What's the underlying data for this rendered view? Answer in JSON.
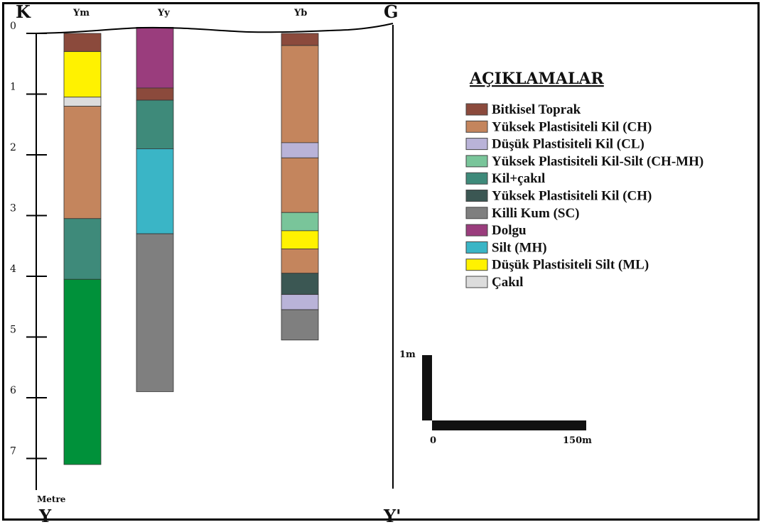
{
  "section": {
    "left_label": "K",
    "right_label": "G",
    "bottom_left_label": "Y",
    "bottom_right_label": "Y'",
    "depth_unit_label": "Metre",
    "depth_ticks": [
      "0",
      "1",
      "2",
      "3",
      "4",
      "5",
      "6",
      "7"
    ]
  },
  "boreholes": [
    {
      "name": "Ym",
      "layers": [
        {
          "unit": "Bitkisel Toprak",
          "top": 0.0,
          "bottom": 0.3
        },
        {
          "unit": "Düşük Plastisiteli Silt (ML)",
          "top": 0.3,
          "bottom": 1.05
        },
        {
          "unit": "Çakıl",
          "top": 1.05,
          "bottom": 1.2
        },
        {
          "unit": "Yüksek Plastisiteli Kil (CH)",
          "top": 1.2,
          "bottom": 3.05
        },
        {
          "unit": "Kil+çakıl",
          "top": 3.05,
          "bottom": 4.05
        },
        {
          "unit": "Green",
          "top": 4.05,
          "bottom": 7.1
        }
      ]
    },
    {
      "name": "Yy",
      "layers": [
        {
          "unit": "Dolgu",
          "top": -0.1,
          "bottom": 0.9
        },
        {
          "unit": "Bitkisel Toprak",
          "top": 0.9,
          "bottom": 1.1
        },
        {
          "unit": "Kil+çakıl",
          "top": 1.1,
          "bottom": 1.9
        },
        {
          "unit": "Silt (MH)",
          "top": 1.9,
          "bottom": 3.3
        },
        {
          "unit": "Killi Kum (SC)",
          "top": 3.3,
          "bottom": 5.9
        }
      ]
    },
    {
      "name": "Yb",
      "layers": [
        {
          "unit": "Bitkisel Toprak",
          "top": 0.0,
          "bottom": 0.2
        },
        {
          "unit": "Yüksek Plastisiteli Kil (CH)",
          "top": 0.2,
          "bottom": 1.8
        },
        {
          "unit": "Düşük Plastisiteli Kil (CL)",
          "top": 1.8,
          "bottom": 2.05
        },
        {
          "unit": "Yüksek Plastisiteli Kil (CH)",
          "top": 2.05,
          "bottom": 2.95
        },
        {
          "unit": "Yüksek Plastisiteli Kil-Silt (CH-MH)",
          "top": 2.95,
          "bottom": 3.25
        },
        {
          "unit": "Düşük Plastisiteli Silt (ML)",
          "top": 3.25,
          "bottom": 3.55
        },
        {
          "unit": "Yüksek Plastisiteli Kil (CH)",
          "top": 3.55,
          "bottom": 3.95
        },
        {
          "unit": "Yüksek Plastisiteli Kil (CH) dark",
          "top": 3.95,
          "bottom": 4.3
        },
        {
          "unit": "Düşük Plastisiteli Kil (CL)",
          "top": 4.3,
          "bottom": 4.55
        },
        {
          "unit": "Killi Kum (SC)",
          "top": 4.55,
          "bottom": 5.05
        }
      ]
    }
  ],
  "legend": {
    "title": "AÇIKLAMALAR",
    "items": [
      {
        "label": "Bitkisel Toprak",
        "color": "#8b4a3c"
      },
      {
        "label": "Yüksek Plastisiteli Kil (CH)",
        "color": "#c4855d"
      },
      {
        "label": "Düşük Plastisiteli Kil (CL)",
        "color": "#b9b3d8"
      },
      {
        "label": "Yüksek Plastisiteli Kil-Silt (CH-MH)",
        "color": "#79c59a"
      },
      {
        "label": "Kil+çakıl",
        "color": "#3e8a7a"
      },
      {
        "label": "Yüksek Plastisiteli Kil (CH)",
        "color": "#3b5753"
      },
      {
        "label": "Killi Kum (SC)",
        "color": "#7f7f7f"
      },
      {
        "label": "Dolgu",
        "color": "#9a3d7d"
      },
      {
        "label": "Silt (MH)",
        "color": "#3ab5c6"
      },
      {
        "label": "Düşük Plastisiteli Silt (ML)",
        "color": "#fff200"
      },
      {
        "label": "Çakıl",
        "color": "#dcdcdc"
      }
    ]
  },
  "extra_colors": {
    "Green": "#00913a",
    "Yüksek Plastisiteli Kil (CH) dark": "#3b5753"
  },
  "scale": {
    "vertical_label": "1m",
    "h_start_label": "0",
    "h_end_label": "150m"
  }
}
